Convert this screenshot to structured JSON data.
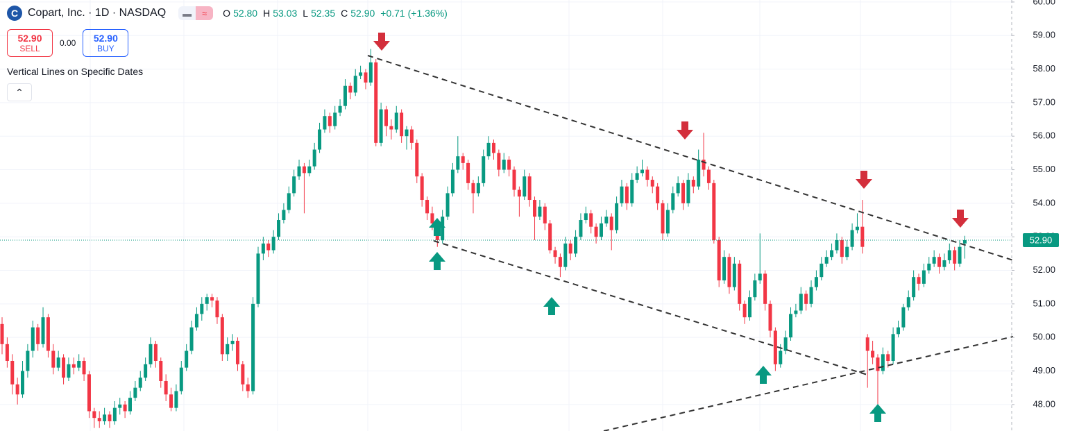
{
  "header": {
    "title": "Copart, Inc. · 1D · NASDAQ",
    "ohlc": [
      {
        "label": "O",
        "value": "52.80"
      },
      {
        "label": "H",
        "value": "53.03"
      },
      {
        "label": "L",
        "value": "52.35"
      },
      {
        "label": "C",
        "value": "52.90"
      }
    ],
    "change": "+0.71 (+1.36%)",
    "sell_price": "52.90",
    "sell": "SELL",
    "spread": "0.00",
    "buy_price": "52.90",
    "buy": "BUY",
    "indicator": "Vertical Lines on Specific Dates"
  },
  "chart_data": {
    "type": "candlestick",
    "up_color": "#089981",
    "down_color": "#f23645",
    "grid": true,
    "ylim": [
      47.21,
      60.06
    ],
    "yticks": [
      {
        "value": 48,
        "label": "48.00"
      },
      {
        "value": 49,
        "label": "49.00"
      },
      {
        "value": 50,
        "label": "50.00"
      },
      {
        "value": 51,
        "label": "51.00"
      },
      {
        "value": 52,
        "label": "52.00"
      },
      {
        "value": 53,
        "label": "53.00"
      },
      {
        "value": 54,
        "label": "54.00"
      },
      {
        "value": 55,
        "label": "55.00"
      },
      {
        "value": 56,
        "label": "56.00"
      },
      {
        "value": 57,
        "label": "57.00"
      },
      {
        "value": 58,
        "label": "58.00"
      },
      {
        "value": 59,
        "label": "59.00"
      },
      {
        "value": 60,
        "label": "60.00"
      }
    ],
    "price_tag": "52.90",
    "candles": [
      [
        50.4,
        50.6,
        49.5,
        49.8
      ],
      [
        49.8,
        50.0,
        49.1,
        49.3
      ],
      [
        49.3,
        49.5,
        48.3,
        48.6
      ],
      [
        48.6,
        48.8,
        48.0,
        48.3
      ],
      [
        48.3,
        49.3,
        48.2,
        49.0
      ],
      [
        49.0,
        49.8,
        48.8,
        49.6
      ],
      [
        49.6,
        50.5,
        49.4,
        50.3
      ],
      [
        50.3,
        50.4,
        49.6,
        49.8
      ],
      [
        49.8,
        50.9,
        49.7,
        50.6
      ],
      [
        50.6,
        50.7,
        49.4,
        49.6
      ],
      [
        49.6,
        49.8,
        48.9,
        49.1
      ],
      [
        49.1,
        49.6,
        49.0,
        49.4
      ],
      [
        49.4,
        49.5,
        48.6,
        48.8
      ],
      [
        48.8,
        49.4,
        48.7,
        49.2
      ],
      [
        49.2,
        49.4,
        48.9,
        49.1
      ],
      [
        49.1,
        49.5,
        49.0,
        49.3
      ],
      [
        49.3,
        49.4,
        48.7,
        48.9
      ],
      [
        48.9,
        49.0,
        47.6,
        47.8
      ],
      [
        47.8,
        47.9,
        47.3,
        47.6
      ],
      [
        47.6,
        47.8,
        47.3,
        47.5
      ],
      [
        47.5,
        47.9,
        47.4,
        47.7
      ],
      [
        47.7,
        47.8,
        47.3,
        47.5
      ],
      [
        47.5,
        48.1,
        47.4,
        47.9
      ],
      [
        47.9,
        48.2,
        47.7,
        48.0
      ],
      [
        48.0,
        48.1,
        47.6,
        47.8
      ],
      [
        47.8,
        48.4,
        47.7,
        48.2
      ],
      [
        48.2,
        48.7,
        48.1,
        48.5
      ],
      [
        48.5,
        49.0,
        48.4,
        48.8
      ],
      [
        48.8,
        49.4,
        48.7,
        49.2
      ],
      [
        49.2,
        50.0,
        49.1,
        49.8
      ],
      [
        49.8,
        49.9,
        49.1,
        49.3
      ],
      [
        49.3,
        49.4,
        48.5,
        48.7
      ],
      [
        48.7,
        48.9,
        48.1,
        48.3
      ],
      [
        48.3,
        48.5,
        47.8,
        47.9
      ],
      [
        47.9,
        48.6,
        47.8,
        48.4
      ],
      [
        48.4,
        49.3,
        48.3,
        49.1
      ],
      [
        49.1,
        49.8,
        49.0,
        49.6
      ],
      [
        49.6,
        50.5,
        49.5,
        50.3
      ],
      [
        50.3,
        50.9,
        50.2,
        50.7
      ],
      [
        50.7,
        51.2,
        50.5,
        51.0
      ],
      [
        51.0,
        51.3,
        50.8,
        51.2
      ],
      [
        51.2,
        51.3,
        50.9,
        51.1
      ],
      [
        51.1,
        51.2,
        50.4,
        50.6
      ],
      [
        50.6,
        50.7,
        49.3,
        49.5
      ],
      [
        49.5,
        50.0,
        49.3,
        49.8
      ],
      [
        49.8,
        50.1,
        49.6,
        49.9
      ],
      [
        49.9,
        50.0,
        49.0,
        49.2
      ],
      [
        49.2,
        49.3,
        48.4,
        48.6
      ],
      [
        48.6,
        48.8,
        48.2,
        48.4
      ],
      [
        48.4,
        51.2,
        48.3,
        51.0
      ],
      [
        51.0,
        52.7,
        50.9,
        52.5
      ],
      [
        52.5,
        53.0,
        52.3,
        52.8
      ],
      [
        52.8,
        52.9,
        52.4,
        52.6
      ],
      [
        52.6,
        53.2,
        52.5,
        53.0
      ],
      [
        53.0,
        53.7,
        52.9,
        53.5
      ],
      [
        53.5,
        54.0,
        53.4,
        53.8
      ],
      [
        53.8,
        54.5,
        53.7,
        54.3
      ],
      [
        54.3,
        55.0,
        54.2,
        54.8
      ],
      [
        54.8,
        55.3,
        54.7,
        55.1
      ],
      [
        55.1,
        55.2,
        53.7,
        54.9
      ],
      [
        54.9,
        55.3,
        54.8,
        55.1
      ],
      [
        55.1,
        55.8,
        55.0,
        55.6
      ],
      [
        55.6,
        56.4,
        55.5,
        56.2
      ],
      [
        56.2,
        56.8,
        56.1,
        56.6
      ],
      [
        56.6,
        56.7,
        56.1,
        56.3
      ],
      [
        56.3,
        56.9,
        56.2,
        56.7
      ],
      [
        56.7,
        57.1,
        56.6,
        56.9
      ],
      [
        56.9,
        57.7,
        56.8,
        57.5
      ],
      [
        57.5,
        57.6,
        57.1,
        57.3
      ],
      [
        57.3,
        58.0,
        57.2,
        57.8
      ],
      [
        57.8,
        58.1,
        57.7,
        57.9
      ],
      [
        57.9,
        58.0,
        57.4,
        57.6
      ],
      [
        57.6,
        58.6,
        57.5,
        58.2
      ],
      [
        58.2,
        58.3,
        55.7,
        55.8
      ],
      [
        55.8,
        57.0,
        55.7,
        56.8
      ],
      [
        56.8,
        56.9,
        56.0,
        56.3
      ],
      [
        56.3,
        56.5,
        55.9,
        56.2
      ],
      [
        56.2,
        56.9,
        56.1,
        56.7
      ],
      [
        56.7,
        56.8,
        55.8,
        56.0
      ],
      [
        56.0,
        56.3,
        55.6,
        56.2
      ],
      [
        56.2,
        56.3,
        55.6,
        55.8
      ],
      [
        55.8,
        55.9,
        54.6,
        54.8
      ],
      [
        54.8,
        54.9,
        53.9,
        54.1
      ],
      [
        54.1,
        54.2,
        53.5,
        53.7
      ],
      [
        53.7,
        53.9,
        53.2,
        53.4
      ],
      [
        53.4,
        53.5,
        52.7,
        52.9
      ],
      [
        52.9,
        53.8,
        52.8,
        53.6
      ],
      [
        53.6,
        54.5,
        53.5,
        54.3
      ],
      [
        54.3,
        55.2,
        54.2,
        55.0
      ],
      [
        55.0,
        56.0,
        54.9,
        55.4
      ],
      [
        55.4,
        55.5,
        55.0,
        55.2
      ],
      [
        55.2,
        55.3,
        54.4,
        54.6
      ],
      [
        54.6,
        54.7,
        53.7,
        54.3
      ],
      [
        54.3,
        54.8,
        54.2,
        54.6
      ],
      [
        54.6,
        55.6,
        54.5,
        55.4
      ],
      [
        55.4,
        56.0,
        55.3,
        55.8
      ],
      [
        55.8,
        55.9,
        55.3,
        55.5
      ],
      [
        55.5,
        55.6,
        54.8,
        55.0
      ],
      [
        55.0,
        55.5,
        54.9,
        55.3
      ],
      [
        55.3,
        55.4,
        54.8,
        55.0
      ],
      [
        55.0,
        55.1,
        54.2,
        54.4
      ],
      [
        54.4,
        54.5,
        53.6,
        54.2
      ],
      [
        54.2,
        55.0,
        54.1,
        54.8
      ],
      [
        54.8,
        54.9,
        53.9,
        54.1
      ],
      [
        54.1,
        54.2,
        52.9,
        53.6
      ],
      [
        53.6,
        54.1,
        53.5,
        53.9
      ],
      [
        53.9,
        54.0,
        53.2,
        53.4
      ],
      [
        53.4,
        53.5,
        52.5,
        52.6
      ],
      [
        52.6,
        52.7,
        52.2,
        52.4
      ],
      [
        52.4,
        52.5,
        51.8,
        52.1
      ],
      [
        52.1,
        53.0,
        52.0,
        52.8
      ],
      [
        52.8,
        52.9,
        52.3,
        52.5
      ],
      [
        52.5,
        53.2,
        52.4,
        53.0
      ],
      [
        53.0,
        53.7,
        52.9,
        53.5
      ],
      [
        53.5,
        53.9,
        53.4,
        53.7
      ],
      [
        53.7,
        53.8,
        53.1,
        53.3
      ],
      [
        53.3,
        53.4,
        52.8,
        53.0
      ],
      [
        53.0,
        53.6,
        52.9,
        53.4
      ],
      [
        53.4,
        53.8,
        53.3,
        53.6
      ],
      [
        53.6,
        53.7,
        52.6,
        53.2
      ],
      [
        53.2,
        54.2,
        53.1,
        54.0
      ],
      [
        54.0,
        54.7,
        53.9,
        54.5
      ],
      [
        54.5,
        54.6,
        53.8,
        54.0
      ],
      [
        54.0,
        54.9,
        53.9,
        54.7
      ],
      [
        54.7,
        55.1,
        54.6,
        54.9
      ],
      [
        54.9,
        55.3,
        54.8,
        55.0
      ],
      [
        55.0,
        55.1,
        54.5,
        54.7
      ],
      [
        54.7,
        54.8,
        54.3,
        54.5
      ],
      [
        54.5,
        54.6,
        53.8,
        54.0
      ],
      [
        54.0,
        54.1,
        52.9,
        53.1
      ],
      [
        53.1,
        54.0,
        53.0,
        53.8
      ],
      [
        53.8,
        54.5,
        53.7,
        54.3
      ],
      [
        54.3,
        54.8,
        54.2,
        54.6
      ],
      [
        54.6,
        54.7,
        53.8,
        54.0
      ],
      [
        54.0,
        54.9,
        53.9,
        54.7
      ],
      [
        54.7,
        54.8,
        54.3,
        54.5
      ],
      [
        54.5,
        55.6,
        54.4,
        55.3
      ],
      [
        55.3,
        56.1,
        54.8,
        55.0
      ],
      [
        55.0,
        55.1,
        54.4,
        54.6
      ],
      [
        54.6,
        54.7,
        52.8,
        52.9
      ],
      [
        52.9,
        53.0,
        51.5,
        51.7
      ],
      [
        51.7,
        52.6,
        51.6,
        52.4
      ],
      [
        52.4,
        52.5,
        51.3,
        51.5
      ],
      [
        51.5,
        52.4,
        51.4,
        52.2
      ],
      [
        52.2,
        52.3,
        50.8,
        51.0
      ],
      [
        51.0,
        51.1,
        50.4,
        50.6
      ],
      [
        50.6,
        51.4,
        50.5,
        51.2
      ],
      [
        51.2,
        51.9,
        51.1,
        51.7
      ],
      [
        51.7,
        53.1,
        51.6,
        51.9
      ],
      [
        51.9,
        52.0,
        50.8,
        51.0
      ],
      [
        51.0,
        51.1,
        50.0,
        50.2
      ],
      [
        50.2,
        50.3,
        49.0,
        49.2
      ],
      [
        49.2,
        49.8,
        49.1,
        49.6
      ],
      [
        49.6,
        50.2,
        49.5,
        50.0
      ],
      [
        50.0,
        50.9,
        49.9,
        50.7
      ],
      [
        50.7,
        51.0,
        50.6,
        50.8
      ],
      [
        50.8,
        51.5,
        50.7,
        51.3
      ],
      [
        51.3,
        51.4,
        50.8,
        51.0
      ],
      [
        51.0,
        51.7,
        50.9,
        51.5
      ],
      [
        51.5,
        52.0,
        51.4,
        51.8
      ],
      [
        51.8,
        52.4,
        51.7,
        52.2
      ],
      [
        52.2,
        52.6,
        52.1,
        52.4
      ],
      [
        52.4,
        52.8,
        52.3,
        52.6
      ],
      [
        52.6,
        53.1,
        52.5,
        52.9
      ],
      [
        52.9,
        53.0,
        52.2,
        52.4
      ],
      [
        52.4,
        52.9,
        52.3,
        52.7
      ],
      [
        52.7,
        53.4,
        52.6,
        53.2
      ],
      [
        53.2,
        53.7,
        53.1,
        53.3
      ],
      [
        53.3,
        54.1,
        52.5,
        52.7
      ],
      [
        50.0,
        50.1,
        48.5,
        49.6
      ],
      [
        49.6,
        49.9,
        49.2,
        49.4
      ],
      [
        49.4,
        49.5,
        48.0,
        49.0
      ],
      [
        49.0,
        49.7,
        48.9,
        49.5
      ],
      [
        49.5,
        49.6,
        49.1,
        49.3
      ],
      [
        49.3,
        50.3,
        49.2,
        50.1
      ],
      [
        50.1,
        50.5,
        50.0,
        50.3
      ],
      [
        50.3,
        51.0,
        50.2,
        50.9
      ],
      [
        50.9,
        51.4,
        50.8,
        51.2
      ],
      [
        51.2,
        52.0,
        51.1,
        51.8
      ],
      [
        51.8,
        51.9,
        51.4,
        51.6
      ],
      [
        51.6,
        52.2,
        51.5,
        52.0
      ],
      [
        52.0,
        52.4,
        51.9,
        52.2
      ],
      [
        52.2,
        52.6,
        52.1,
        52.4
      ],
      [
        52.4,
        52.5,
        51.9,
        52.1
      ],
      [
        52.1,
        52.5,
        52.0,
        52.3
      ],
      [
        52.3,
        52.8,
        52.2,
        52.6
      ],
      [
        52.6,
        52.7,
        52.0,
        52.2
      ],
      [
        52.2,
        52.9,
        52.1,
        52.7
      ],
      [
        52.8,
        53.03,
        52.35,
        52.9
      ]
    ]
  }
}
